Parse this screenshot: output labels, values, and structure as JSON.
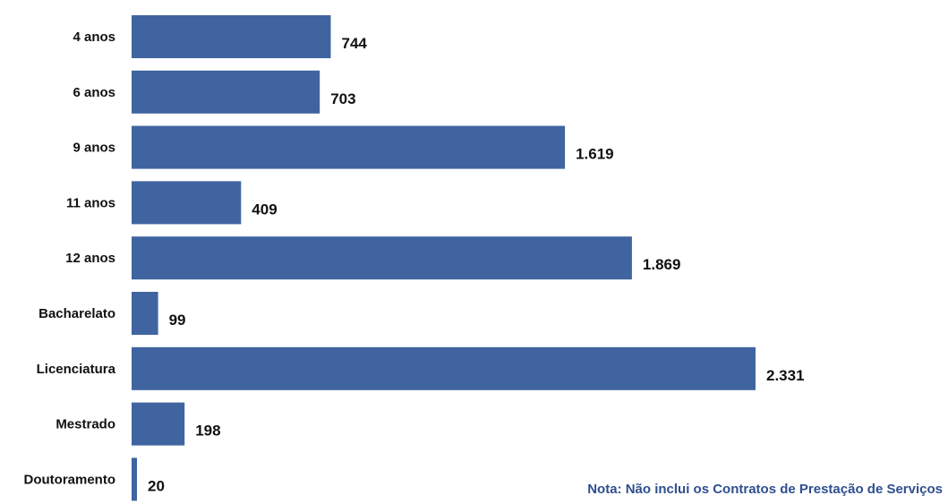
{
  "colors": {
    "bar": "#4064a0",
    "text": "#111111",
    "note": "#2f4f8f"
  },
  "note": "Nota: Não inclui os Contratos de Prestação de Serviços",
  "chart_data": {
    "type": "bar",
    "orientation": "horizontal",
    "categories": [
      "4 anos",
      "6 anos",
      "9 anos",
      "11 anos",
      "12 anos",
      "Bacharelato",
      "Licenciatura",
      "Mestrado",
      "Doutoramento"
    ],
    "values": [
      744,
      703,
      1619,
      409,
      1869,
      99,
      2331,
      198,
      20
    ],
    "value_labels": [
      "744",
      "703",
      "1.619",
      "409",
      "1.869",
      "99",
      "2.331",
      "198",
      "20"
    ],
    "title": "",
    "xlabel": "",
    "ylabel": "",
    "grid": false,
    "legend": "none"
  }
}
